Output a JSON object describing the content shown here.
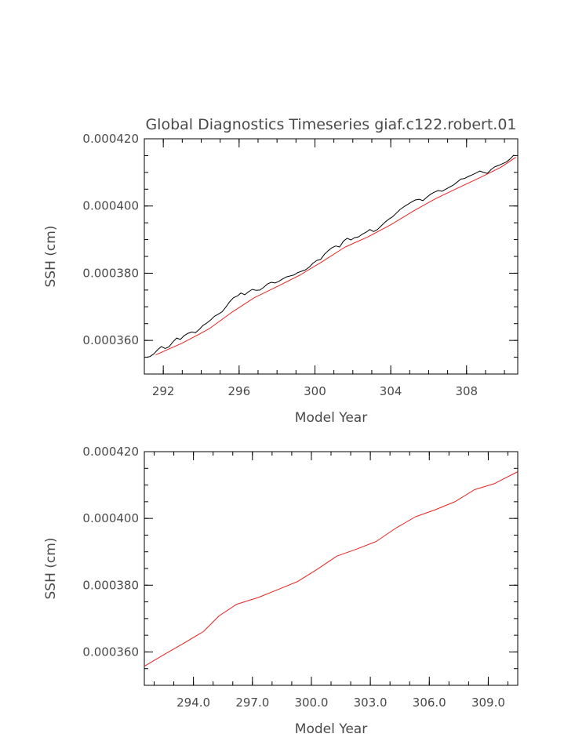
{
  "chart_data": [
    {
      "type": "line",
      "title": "Global Diagnostics Timeseries giaf.c122.robert.01",
      "xlabel": "Model Year",
      "ylabel": "SSH (cm)",
      "xlim": [
        291.0,
        310.7
      ],
      "ylim": [
        0.00035,
        0.00042
      ],
      "xticks": [
        292,
        296,
        300,
        304,
        308
      ],
      "xtick_labels": [
        "292",
        "296",
        "300",
        "304",
        "308"
      ],
      "yticks": [
        0.00036,
        0.00038,
        0.0004,
        0.00042
      ],
      "ytick_labels": [
        "0.000360",
        "0.000380",
        "0.000400",
        "0.000420"
      ],
      "series": [
        {
          "color": "#000000",
          "x": [
            291.1,
            291.3,
            291.5,
            291.7,
            291.9,
            292.1,
            292.3,
            292.5,
            292.7,
            292.9,
            293.1,
            293.3,
            293.5,
            293.7,
            293.9,
            294.1,
            294.3,
            294.5,
            294.7,
            294.9,
            295.1,
            295.3,
            295.5,
            295.7,
            295.9,
            296.1,
            296.3,
            296.5,
            296.7,
            296.9,
            297.1,
            297.3,
            297.5,
            297.7,
            297.9,
            298.1,
            298.3,
            298.5,
            298.7,
            298.9,
            299.1,
            299.3,
            299.5,
            299.7,
            299.9,
            300.1,
            300.3,
            300.5,
            300.7,
            300.9,
            301.1,
            301.3,
            301.5,
            301.7,
            301.9,
            302.1,
            302.3,
            302.5,
            302.7,
            302.9,
            303.1,
            303.3,
            303.5,
            303.7,
            303.9,
            304.1,
            304.3,
            304.5,
            304.7,
            304.9,
            305.1,
            305.3,
            305.5,
            305.7,
            305.9,
            306.1,
            306.3,
            306.5,
            306.7,
            306.9,
            307.1,
            307.3,
            307.5,
            307.7,
            307.9,
            308.1,
            308.3,
            308.5,
            308.7,
            308.9,
            309.1,
            309.3,
            309.5,
            309.7,
            309.9,
            310.1,
            310.3,
            310.5
          ],
          "y": [
            0.000355,
            0.0003552,
            0.000356,
            0.0003572,
            0.0003582,
            0.0003576,
            0.0003581,
            0.0003595,
            0.0003607,
            0.0003603,
            0.0003614,
            0.0003621,
            0.0003625,
            0.0003623,
            0.0003633,
            0.0003645,
            0.0003652,
            0.0003661,
            0.0003672,
            0.0003678,
            0.0003685,
            0.0003699,
            0.0003715,
            0.0003727,
            0.0003732,
            0.0003741,
            0.0003736,
            0.0003745,
            0.0003752,
            0.0003749,
            0.000375,
            0.0003758,
            0.0003768,
            0.0003773,
            0.0003771,
            0.0003776,
            0.0003783,
            0.0003789,
            0.0003792,
            0.0003795,
            0.0003802,
            0.0003806,
            0.000381,
            0.0003818,
            0.000383,
            0.0003838,
            0.0003841,
            0.0003856,
            0.0003867,
            0.0003876,
            0.0003881,
            0.0003878,
            0.0003895,
            0.0003904,
            0.0003899,
            0.0003906,
            0.0003908,
            0.0003916,
            0.0003922,
            0.000393,
            0.0003924,
            0.000393,
            0.0003941,
            0.0003952,
            0.0003961,
            0.0003968,
            0.0003979,
            0.000399,
            0.0003998,
            0.0004005,
            0.0004012,
            0.0004018,
            0.000402,
            0.0004016,
            0.0004026,
            0.0004035,
            0.0004041,
            0.0004046,
            0.0004044,
            0.000405,
            0.0004056,
            0.0004062,
            0.0004071,
            0.000408,
            0.0004082,
            0.0004088,
            0.0004093,
            0.0004098,
            0.0004104,
            0.00041,
            0.0004097,
            0.0004109,
            0.0004117,
            0.0004121,
            0.0004126,
            0.0004131,
            0.000414,
            0.0004152
          ]
        },
        {
          "color": "#e8221d",
          "x": [
            291.6,
            293.0,
            294.4,
            295.6,
            296.8,
            298.0,
            299.2,
            300.4,
            301.6,
            302.8,
            304.0,
            305.2,
            306.4,
            307.6,
            308.8,
            309.8,
            310.6
          ],
          "y": [
            0.0003557,
            0.0003592,
            0.0003634,
            0.0003683,
            0.0003727,
            0.000376,
            0.0003794,
            0.0003835,
            0.0003878,
            0.0003908,
            0.0003944,
            0.0003985,
            0.0004023,
            0.0004055,
            0.0004087,
            0.0004115,
            0.0004145
          ]
        }
      ]
    },
    {
      "type": "line",
      "title": "",
      "xlabel": "Model Year",
      "ylabel": "SSH (cm)",
      "xlim": [
        291.5,
        310.5
      ],
      "ylim": [
        0.00035,
        0.00042
      ],
      "xticks": [
        294.0,
        297.0,
        300.0,
        303.0,
        306.0,
        309.0
      ],
      "xtick_labels": [
        "294.0",
        "297.0",
        "300.0",
        "303.0",
        "306.0",
        "309.0"
      ],
      "yticks": [
        0.00036,
        0.00038,
        0.0004,
        0.00042
      ],
      "ytick_labels": [
        "0.000360",
        "0.000380",
        "0.000400",
        "0.000420"
      ],
      "series": [
        {
          "color": "#e8221d",
          "x": [
            291.5,
            292.5,
            293.5,
            294.5,
            295.3,
            296.2,
            297.3,
            298.3,
            299.3,
            300.3,
            301.3,
            302.3,
            303.3,
            304.3,
            305.3,
            306.3,
            307.3,
            308.3,
            309.3,
            310.5
          ],
          "y": [
            0.0003557,
            0.0003592,
            0.0003626,
            0.0003661,
            0.0003708,
            0.0003743,
            0.0003763,
            0.0003787,
            0.0003811,
            0.0003848,
            0.0003887,
            0.0003908,
            0.0003931,
            0.0003971,
            0.0004005,
            0.0004026,
            0.000405,
            0.0004086,
            0.0004104,
            0.000414
          ]
        }
      ]
    }
  ]
}
